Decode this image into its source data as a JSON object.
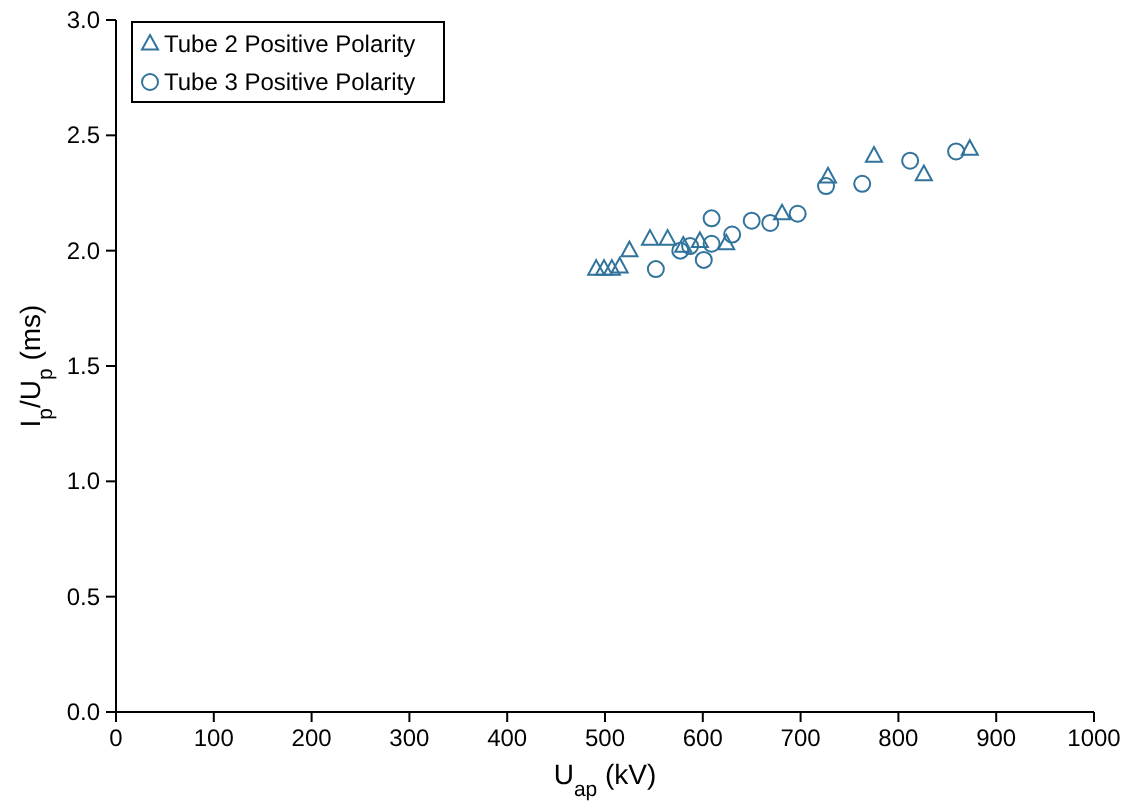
{
  "chart_data": {
    "type": "scatter",
    "xlabel": "U$_{ap}$ (kV)",
    "ylabel": "I$_{p}$/U$_{p}$ (ms)",
    "xlim": [
      0,
      1000
    ],
    "ylim": [
      0,
      3
    ],
    "xticks": [
      0,
      100,
      200,
      300,
      400,
      500,
      600,
      700,
      800,
      900,
      1000
    ],
    "yticks": [
      {
        "value": 0,
        "label": "0.0"
      },
      {
        "value": 0.5,
        "label": "0.5"
      },
      {
        "value": 1,
        "label": "1.0"
      },
      {
        "value": 1.5,
        "label": "1.5"
      },
      {
        "value": 2,
        "label": "2.0"
      },
      {
        "value": 2.5,
        "label": "2.5"
      },
      {
        "value": 3,
        "label": "3.0"
      }
    ],
    "legend": "top left",
    "grid": false,
    "series": [
      {
        "name": "Tube 2 Positive Polarity",
        "color": "#31739b",
        "marker": "triangle",
        "x": [
          491,
          499,
          507,
          515,
          525,
          546,
          564,
          580,
          597,
          624,
          681,
          728,
          775,
          826,
          873
        ],
        "values": [
          1.92,
          1.92,
          1.92,
          1.93,
          2.0,
          2.05,
          2.05,
          2.02,
          2.04,
          2.03,
          2.16,
          2.32,
          2.41,
          2.33,
          2.44
        ]
      },
      {
        "name": "Tube 3 Positive Polarity",
        "color": "#31739b",
        "marker": "circle",
        "x": [
          552,
          577,
          587,
          601,
          609,
          609,
          630,
          650,
          669,
          697,
          726,
          763,
          812,
          859
        ],
        "values": [
          1.92,
          2.0,
          2.02,
          1.96,
          2.03,
          2.14,
          2.07,
          2.13,
          2.12,
          2.16,
          2.28,
          2.29,
          2.39,
          2.43
        ]
      }
    ]
  }
}
